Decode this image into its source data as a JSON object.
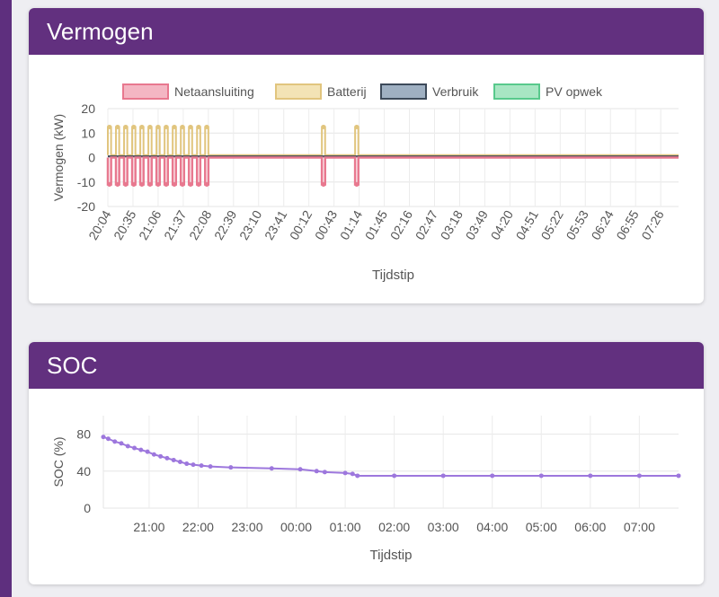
{
  "cards": [
    {
      "title": "Vermogen"
    },
    {
      "title": "SOC"
    }
  ],
  "chart_data": [
    {
      "type": "line",
      "title": "",
      "xlabel": "Tijdstip",
      "ylabel": "Vermogen (kW)",
      "ylim": [
        -20,
        20
      ],
      "yticks": [
        20,
        10,
        0,
        -10,
        -20
      ],
      "grid": true,
      "legend_position": "top",
      "x_tick_labels": [
        "20:04",
        "20:35",
        "21:06",
        "21:37",
        "22:08",
        "22:39",
        "23:10",
        "23:41",
        "00:12",
        "00:43",
        "01:14",
        "01:45",
        "02:16",
        "02:47",
        "03:18",
        "03:49",
        "04:20",
        "04:51",
        "05:22",
        "05:53",
        "06:24",
        "06:55",
        "07:26"
      ],
      "series": [
        {
          "name": "Netaansluiting",
          "color": "#e8788f",
          "fill": "#f4b6c3",
          "pulses": {
            "times": [
              "20:04",
              "20:14",
              "20:24",
              "20:34",
              "20:44",
              "20:54",
              "21:04",
              "21:14",
              "21:24",
              "21:34",
              "21:44",
              "21:54",
              "22:04",
              "00:28",
              "01:09"
            ],
            "value": -11,
            "duration_min": 4
          },
          "baseline": 0
        },
        {
          "name": "Batterij",
          "color": "#e1c57e",
          "fill": "#f3e3b5",
          "pulses": {
            "times": [
              "20:04",
              "20:14",
              "20:24",
              "20:34",
              "20:44",
              "20:54",
              "21:04",
              "21:14",
              "21:24",
              "21:34",
              "21:44",
              "21:54",
              "22:04",
              "00:28",
              "01:09"
            ],
            "value": 12.5,
            "duration_min": 4
          },
          "baseline": 1
        },
        {
          "name": "Verbruik",
          "color": "#3d4a5a",
          "fill": "#9fb0c2",
          "value": 0.5
        },
        {
          "name": "PV opwek",
          "color": "#58c98c",
          "fill": "#a8e6c3",
          "value": 0
        }
      ]
    },
    {
      "type": "line",
      "title": "",
      "xlabel": "Tijdstip",
      "ylabel": "SOC (%)",
      "ylim": [
        0,
        100
      ],
      "yticks": [
        80,
        40,
        0
      ],
      "grid": true,
      "x_tick_labels": [
        "21:00",
        "22:00",
        "23:00",
        "00:00",
        "01:00",
        "02:00",
        "03:00",
        "04:00",
        "05:00",
        "06:00",
        "07:00"
      ],
      "series": [
        {
          "name": "SOC",
          "color": "#9d77dd",
          "points": [
            [
              "20:04",
              77
            ],
            [
              "20:10",
              75
            ],
            [
              "20:18",
              72
            ],
            [
              "20:26",
              70
            ],
            [
              "20:34",
              67
            ],
            [
              "20:42",
              65
            ],
            [
              "20:50",
              63
            ],
            [
              "20:58",
              61
            ],
            [
              "21:06",
              58
            ],
            [
              "21:14",
              56
            ],
            [
              "21:22",
              54
            ],
            [
              "21:30",
              52
            ],
            [
              "21:38",
              50
            ],
            [
              "21:46",
              48
            ],
            [
              "21:54",
              47
            ],
            [
              "22:04",
              46
            ],
            [
              "22:15",
              45
            ],
            [
              "22:40",
              44
            ],
            [
              "23:30",
              43
            ],
            [
              "00:05",
              42
            ],
            [
              "00:25",
              40
            ],
            [
              "00:35",
              39
            ],
            [
              "01:00",
              38
            ],
            [
              "01:09",
              37
            ],
            [
              "01:15",
              35
            ],
            [
              "02:00",
              35
            ],
            [
              "03:00",
              35
            ],
            [
              "04:00",
              35
            ],
            [
              "05:00",
              35
            ],
            [
              "06:00",
              35
            ],
            [
              "07:00",
              35
            ],
            [
              "07:48",
              35
            ]
          ]
        }
      ]
    }
  ]
}
